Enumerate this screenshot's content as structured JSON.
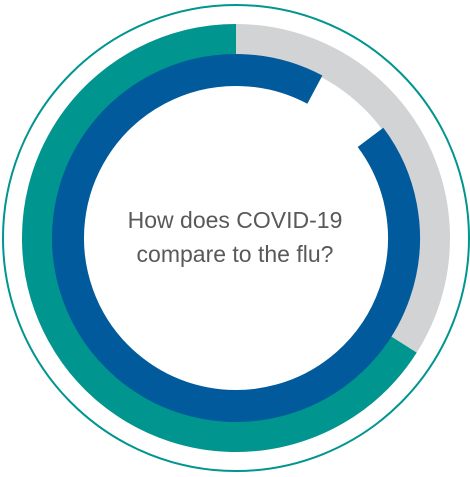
{
  "center_text": {
    "line1": "How does COVID-19",
    "line2": "compare to the flu?"
  },
  "colors": {
    "teal": "#00958f",
    "blue": "#005a9c",
    "gray": "#d1d3d4",
    "outline": "#00958f",
    "text": "#58595b"
  },
  "rings": {
    "outer_teal_fraction": 0.66,
    "inner_blue_fraction": 0.93
  }
}
